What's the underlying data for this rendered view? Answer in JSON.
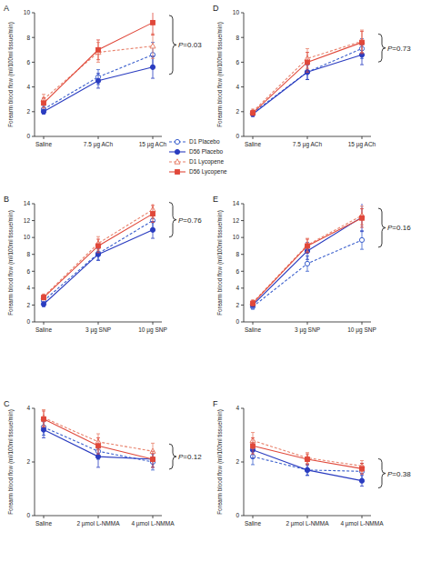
{
  "chart_data": [
    {
      "type": "line",
      "title": "A",
      "y_label": "Forearm blood flow (ml/100ml tissue/min)",
      "categories": [
        "Saline",
        "7.5 µg ACh",
        "15 µg ACh"
      ],
      "ylim": [
        0,
        10
      ],
      "yticks": [
        0,
        2,
        4,
        6,
        8,
        10
      ],
      "annotation": "P=0.03",
      "legend": "bottom-right",
      "series": [
        {
          "name": "D1 Placebo",
          "color": "#3a5fcd",
          "line_style": "dashed",
          "marker": "open-circle",
          "values": [
            2.2,
            4.8,
            6.6
          ],
          "errors": [
            0.3,
            0.6,
            1.0
          ]
        },
        {
          "name": "D56 Placebo",
          "color": "#2a3cc0",
          "line_style": "solid",
          "marker": "filled-circle",
          "values": [
            2.0,
            4.5,
            5.6
          ],
          "errors": [
            0.2,
            0.6,
            0.9
          ]
        },
        {
          "name": "D1 Lycopene",
          "color": "#e8806a",
          "line_style": "dashed",
          "marker": "open-triangle",
          "values": [
            3.0,
            6.8,
            7.3
          ],
          "errors": [
            0.4,
            0.8,
            1.0
          ]
        },
        {
          "name": "D56 Lycopene",
          "color": "#e0483a",
          "line_style": "solid",
          "marker": "filled-square",
          "values": [
            2.7,
            7.0,
            9.2
          ],
          "errors": [
            0.4,
            0.8,
            1.0
          ]
        }
      ]
    },
    {
      "type": "line",
      "title": "B",
      "y_label": "Forearm blood flow (ml/100ml tissue/min)",
      "categories": [
        "Saline",
        "3 µg SNP",
        "10 µg SNP"
      ],
      "ylim": [
        0,
        14
      ],
      "yticks": [
        0,
        2,
        4,
        6,
        8,
        10,
        12,
        14
      ],
      "annotation": "P=0.76",
      "series": [
        {
          "color": "#3a5fcd",
          "line_style": "dashed",
          "marker": "open-circle",
          "values": [
            2.5,
            8.1,
            12.0
          ],
          "errors": [
            0.3,
            0.8,
            1.0
          ]
        },
        {
          "color": "#2a3cc0",
          "line_style": "solid",
          "marker": "filled-circle",
          "values": [
            2.1,
            8.0,
            10.9
          ],
          "errors": [
            0.3,
            0.7,
            1.0
          ]
        },
        {
          "color": "#e8806a",
          "line_style": "dashed",
          "marker": "open-triangle",
          "values": [
            3.0,
            9.3,
            13.3
          ],
          "errors": [
            0.3,
            0.8,
            1.0
          ]
        },
        {
          "color": "#e0483a",
          "line_style": "solid",
          "marker": "filled-square",
          "values": [
            2.9,
            9.0,
            12.8
          ],
          "errors": [
            0.3,
            0.8,
            1.0
          ]
        }
      ]
    },
    {
      "type": "line",
      "title": "C",
      "y_label": "Forearm blood flow (ml/100ml tissue/min)",
      "categories": [
        "Saline",
        "2 µmol L-NMMA",
        "4 µmol L-NMMA"
      ],
      "ylim": [
        0,
        4
      ],
      "yticks": [
        0,
        2,
        4
      ],
      "annotation": "P=0.12",
      "series": [
        {
          "color": "#3a5fcd",
          "line_style": "dashed",
          "marker": "open-circle",
          "values": [
            3.3,
            2.4,
            2.0
          ],
          "errors": [
            0.3,
            0.3,
            0.3
          ]
        },
        {
          "color": "#2a3cc0",
          "line_style": "solid",
          "marker": "filled-circle",
          "values": [
            3.2,
            2.2,
            2.1
          ],
          "errors": [
            0.3,
            0.4,
            0.3
          ]
        },
        {
          "color": "#e8806a",
          "line_style": "dashed",
          "marker": "open-triangle",
          "values": [
            3.65,
            2.75,
            2.4
          ],
          "errors": [
            0.3,
            0.3,
            0.3
          ]
        },
        {
          "color": "#e0483a",
          "line_style": "solid",
          "marker": "filled-square",
          "values": [
            3.6,
            2.6,
            2.1
          ],
          "errors": [
            0.3,
            0.3,
            0.3
          ]
        }
      ]
    },
    {
      "type": "line",
      "title": "D",
      "y_label": "Forearm blood flow (ml/100ml tissue/min)",
      "categories": [
        "Saline",
        "7.5 µg ACh",
        "15 µg ACh"
      ],
      "ylim": [
        0,
        10
      ],
      "yticks": [
        0,
        2,
        4,
        6,
        8,
        10
      ],
      "annotation": "P=0.73",
      "series": [
        {
          "color": "#3a5fcd",
          "line_style": "dashed",
          "marker": "open-circle",
          "values": [
            1.9,
            5.2,
            7.1
          ],
          "errors": [
            0.2,
            0.6,
            0.8
          ]
        },
        {
          "color": "#2a3cc0",
          "line_style": "solid",
          "marker": "filled-circle",
          "values": [
            1.8,
            5.2,
            6.6
          ],
          "errors": [
            0.2,
            0.6,
            0.8
          ]
        },
        {
          "color": "#e8806a",
          "line_style": "dashed",
          "marker": "open-triangle",
          "values": [
            2.0,
            6.3,
            7.7
          ],
          "errors": [
            0.2,
            0.8,
            0.9
          ]
        },
        {
          "color": "#e0483a",
          "line_style": "solid",
          "marker": "filled-square",
          "values": [
            1.9,
            6.0,
            7.6
          ],
          "errors": [
            0.2,
            0.8,
            0.9
          ]
        }
      ]
    },
    {
      "type": "line",
      "title": "E",
      "y_label": "Forearm blood flow (ml/100ml tissue/min)",
      "categories": [
        "Saline",
        "3 µg SNP",
        "10 µg SNP"
      ],
      "ylim": [
        0,
        14
      ],
      "yticks": [
        0,
        2,
        4,
        6,
        8,
        10,
        12,
        14
      ],
      "annotation": "P=0.16",
      "series": [
        {
          "color": "#3a5fcd",
          "line_style": "dashed",
          "marker": "open-circle",
          "values": [
            1.8,
            6.9,
            9.7
          ],
          "errors": [
            0.3,
            0.9,
            1.1
          ]
        },
        {
          "color": "#2a3cc0",
          "line_style": "solid",
          "marker": "filled-circle",
          "values": [
            2.0,
            8.4,
            12.4
          ],
          "errors": [
            0.3,
            1.0,
            1.7
          ]
        },
        {
          "color": "#e8806a",
          "line_style": "dashed",
          "marker": "open-triangle",
          "values": [
            2.3,
            9.1,
            12.6
          ],
          "errors": [
            0.3,
            0.8,
            1.1
          ]
        },
        {
          "color": "#e0483a",
          "line_style": "solid",
          "marker": "filled-square",
          "values": [
            2.2,
            9.0,
            12.3
          ],
          "errors": [
            0.3,
            0.8,
            1.1
          ]
        }
      ]
    },
    {
      "type": "line",
      "title": "F",
      "y_label": "Forearm blood flow (ml/100ml tissue/min)",
      "categories": [
        "Saline",
        "2 µmol L-NMMA",
        "4 µmol L-NMMA"
      ],
      "ylim": [
        0,
        4
      ],
      "yticks": [
        0,
        2,
        4
      ],
      "annotation": "P=0.38",
      "series": [
        {
          "color": "#3a5fcd",
          "line_style": "dashed",
          "marker": "open-circle",
          "values": [
            2.2,
            1.7,
            1.65
          ],
          "errors": [
            0.3,
            0.2,
            0.3
          ]
        },
        {
          "color": "#2a3cc0",
          "line_style": "solid",
          "marker": "filled-circle",
          "values": [
            2.45,
            1.7,
            1.3
          ],
          "errors": [
            0.3,
            0.2,
            0.2
          ]
        },
        {
          "color": "#e8806a",
          "line_style": "dashed",
          "marker": "open-triangle",
          "values": [
            2.8,
            2.15,
            1.85
          ],
          "errors": [
            0.3,
            0.2,
            0.2
          ]
        },
        {
          "color": "#e0483a",
          "line_style": "solid",
          "marker": "filled-square",
          "values": [
            2.6,
            2.1,
            1.75
          ],
          "errors": [
            0.3,
            0.2,
            0.2
          ]
        }
      ]
    }
  ]
}
